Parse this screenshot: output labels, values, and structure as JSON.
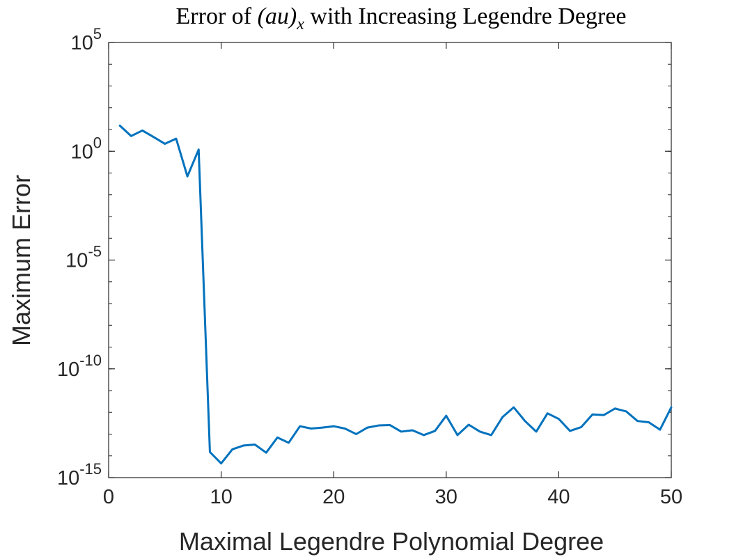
{
  "chart_data": {
    "type": "line",
    "title": {
      "before": "Error of ",
      "math": "(au)",
      "math_sub": "x",
      "after": " with Increasing Legendre Degree"
    },
    "xlabel": "Maximal Legendre Polynomial Degree",
    "ylabel": "Maximum Error",
    "xlim": [
      0,
      50
    ],
    "ylim": [
      1e-15,
      100000.0
    ],
    "yscale": "log",
    "grid": false,
    "box": true,
    "x_ticks": [
      0,
      10,
      20,
      30,
      40,
      50
    ],
    "y_ticks": [
      {
        "value": 1e-15,
        "base": "10",
        "exp": "-15"
      },
      {
        "value": 1e-10,
        "base": "10",
        "exp": "-10"
      },
      {
        "value": 1e-05,
        "base": "10",
        "exp": "-5"
      },
      {
        "value": 1.0,
        "base": "10",
        "exp": "0"
      },
      {
        "value": 100000.0,
        "base": "10",
        "exp": "5"
      }
    ],
    "series": [
      {
        "color": "#0072BD",
        "x": [
          1,
          2,
          3,
          4,
          5,
          6,
          7,
          8,
          9,
          10,
          11,
          12,
          13,
          14,
          15,
          16,
          17,
          18,
          19,
          20,
          21,
          22,
          23,
          24,
          25,
          26,
          27,
          28,
          29,
          30,
          31,
          32,
          33,
          34,
          35,
          36,
          37,
          38,
          39,
          40,
          41,
          42,
          43,
          44,
          45,
          46,
          47,
          48,
          49,
          50
        ],
        "y": [
          15,
          5,
          9,
          4.5,
          2.2,
          3.8,
          0.07,
          1.2,
          1.5e-14,
          4.5e-15,
          2e-14,
          3e-14,
          3.3e-14,
          1.4e-14,
          7e-14,
          4e-14,
          2.3e-13,
          1.8e-13,
          2e-13,
          2.3e-13,
          1.8e-13,
          1e-13,
          2e-13,
          2.5e-13,
          2.6e-13,
          1.3e-13,
          1.5e-13,
          9e-14,
          1.4e-13,
          7e-13,
          9e-14,
          2.7e-13,
          1.3e-13,
          9e-14,
          6e-13,
          1.7e-12,
          4e-13,
          1.3e-13,
          9e-13,
          5e-13,
          1.4e-13,
          2.1e-13,
          8e-13,
          7.5e-13,
          1.5e-12,
          1.1e-12,
          4e-13,
          3.5e-13,
          1.6e-13,
          1.7e-12
        ]
      }
    ]
  }
}
